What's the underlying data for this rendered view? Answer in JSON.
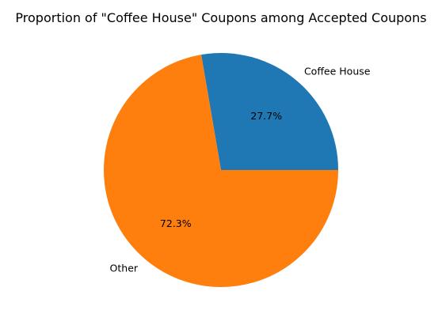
{
  "chart_data": {
    "type": "pie",
    "title": "Proportion of \"Coffee House\" Coupons among Accepted Coupons",
    "slices": [
      {
        "label": "Coffee House",
        "value": 27.7,
        "pct_label": "27.7%",
        "color": "#1f77b4"
      },
      {
        "label": "Other",
        "value": 72.3,
        "pct_label": "72.3%",
        "color": "#ff7f0e"
      }
    ],
    "start_angle_deg": 0,
    "direction": "counterclockwise",
    "legend": "none"
  }
}
